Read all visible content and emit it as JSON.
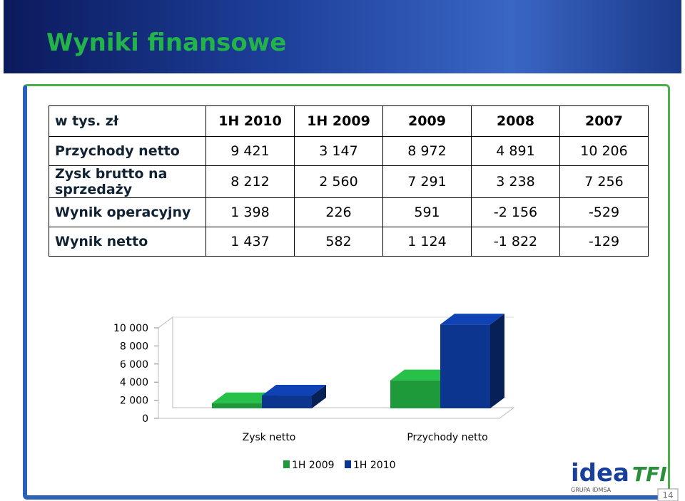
{
  "header": {
    "title": "Wyniki finansowe"
  },
  "table": {
    "header": [
      "w tys. zł",
      "1H 2010",
      "1H 2009",
      "2009",
      "2008",
      "2007"
    ],
    "rows": [
      [
        "Przychody netto",
        "9 421",
        "3 147",
        "8 972",
        "4 891",
        "10 206"
      ],
      [
        "Zysk brutto na sprzedaży",
        "8 212",
        "2 560",
        "7 291",
        "3 238",
        "7 256"
      ],
      [
        "Wynik operacyjny",
        "1 398",
        "226",
        "591",
        "-2 156",
        "-529"
      ],
      [
        "Wynik netto",
        "1 437",
        "582",
        "1 124",
        "-1 822",
        "-129"
      ]
    ]
  },
  "chart_data": {
    "type": "bar3d",
    "categories": [
      "Zysk netto",
      "Przychody netto"
    ],
    "series": [
      {
        "name": "1H 2009",
        "color": "#1f9a3a",
        "values": [
          582,
          3147
        ]
      },
      {
        "name": "1H 2010",
        "color": "#0c3590",
        "values": [
          1437,
          9421
        ]
      }
    ],
    "ylim": [
      0,
      10000
    ],
    "yticks": [
      0,
      {
        "value": 2000,
        "label": "2 000"
      },
      {
        "value": 4000,
        "label": "4 000"
      },
      {
        "value": 6000,
        "label": "6 000"
      },
      {
        "value": 8000,
        "label": "8 000"
      },
      {
        "value": 10000,
        "label": "10 000"
      }
    ]
  },
  "logo": {
    "name": "idea",
    "suffix": "TFI",
    "group": "GRUPA IDMSA"
  },
  "page_number": "14"
}
